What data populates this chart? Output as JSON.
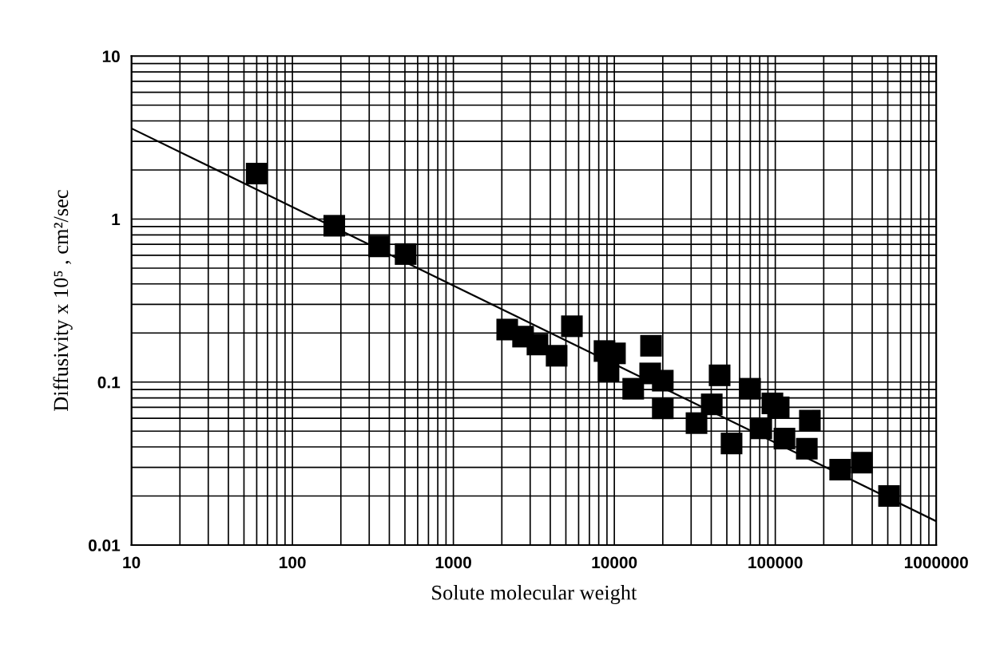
{
  "chart_data": {
    "type": "scatter",
    "xlabel": "Solute molecular weight",
    "ylabel": "Diffusivity x 10⁵ , cm²/sec",
    "log": "xy",
    "grid": true,
    "marker": "square",
    "xlim": [
      10,
      1000000
    ],
    "xticks": [
      10,
      100,
      1000,
      10000,
      100000,
      1000000
    ],
    "ylim": [
      0.01,
      10
    ],
    "yticks": [
      0.01,
      0.1,
      1,
      10
    ],
    "series": [
      {
        "color": "#000000",
        "x": [
          60,
          182,
          346,
          505,
          2160,
          2710,
          3330,
          5450,
          4380,
          8690,
          10090,
          9200,
          13100,
          16900,
          16700,
          20000,
          20000,
          32400,
          40300,
          45100,
          53500,
          69700,
          81800,
          96000,
          105000,
          114000,
          157000,
          164000,
          253000,
          345000,
          509000
        ],
        "values": [
          1.9,
          0.91,
          0.68,
          0.61,
          0.21,
          0.19,
          0.17,
          0.22,
          0.145,
          0.155,
          0.15,
          0.117,
          0.091,
          0.167,
          0.113,
          0.102,
          0.069,
          0.056,
          0.073,
          0.11,
          0.042,
          0.091,
          0.052,
          0.074,
          0.07,
          0.045,
          0.039,
          0.058,
          0.029,
          0.032,
          0.02
        ]
      },
      {
        "type": "line",
        "color": "#000000",
        "marker": "none",
        "line_style": "solid",
        "x": [
          10,
          1000000
        ],
        "values": [
          3.6,
          0.014
        ]
      }
    ]
  }
}
